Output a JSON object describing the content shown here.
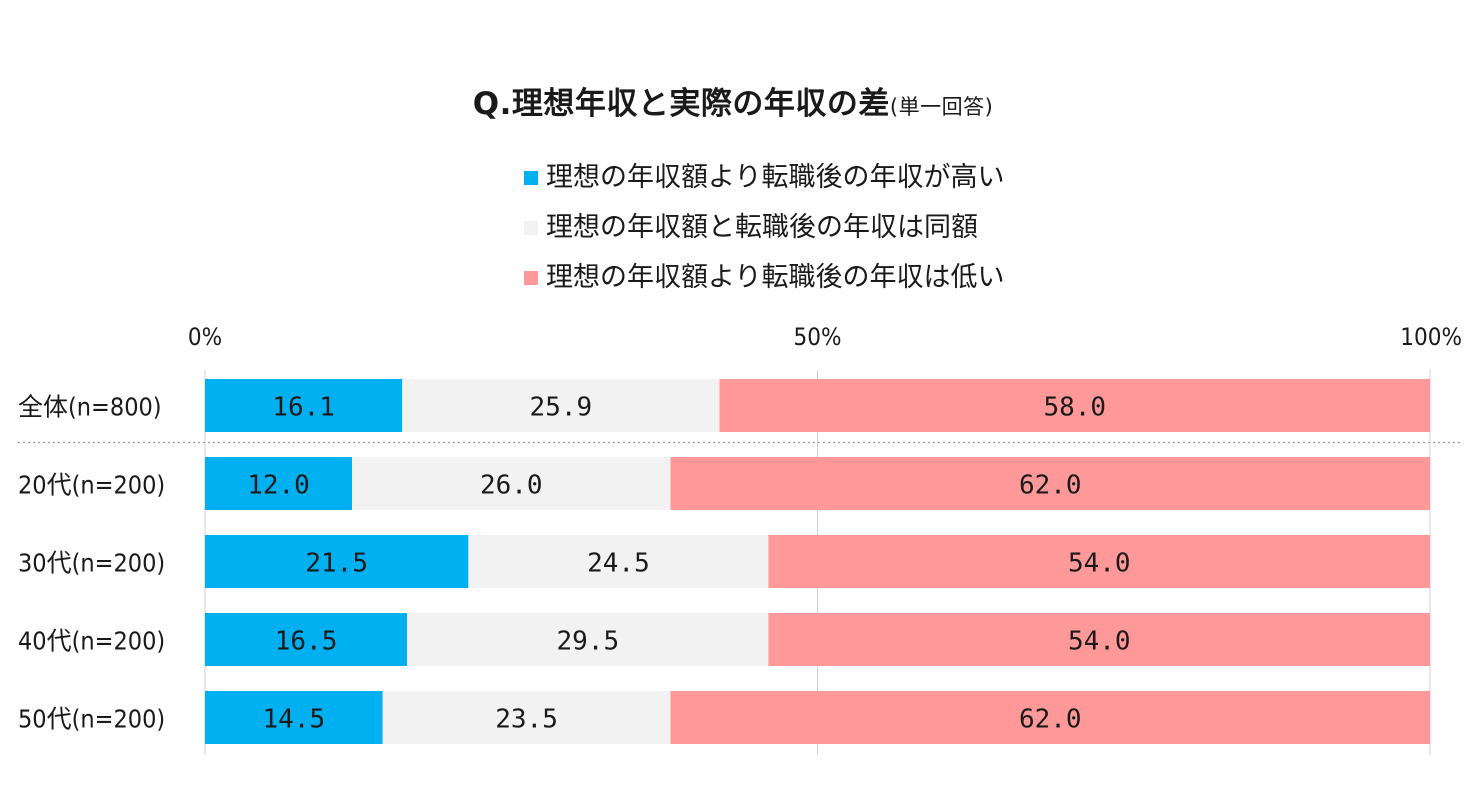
{
  "chart_data": {
    "type": "bar",
    "orientation": "horizontal",
    "stacked": true,
    "title": "Q.理想年収と実際の年収の差",
    "subtitle": "(単一回答)",
    "categories": [
      "全体(n=800)",
      "20代(n=200)",
      "30代(n=200)",
      "40代(n=200)",
      "50代(n=200)"
    ],
    "series": [
      {
        "name": "理想の年収額より転職後の年収が高い",
        "color": "#00b0f0",
        "values": [
          16.1,
          12.0,
          21.5,
          16.5,
          14.5
        ]
      },
      {
        "name": "理想の年収額と転職後の年収は同額",
        "color": "#f2f2f2",
        "values": [
          25.9,
          26.0,
          24.5,
          29.5,
          23.5
        ]
      },
      {
        "name": "理想の年収額より転職後の年収は低い",
        "color": "#ff9999",
        "values": [
          58.0,
          62.0,
          54.0,
          54.0,
          62.0
        ]
      }
    ],
    "xlim": [
      0,
      100
    ],
    "xticks": [
      0,
      50,
      100
    ],
    "xtick_labels": [
      "0%",
      "50%",
      "100%"
    ],
    "grid": true,
    "legend_position": "top"
  }
}
